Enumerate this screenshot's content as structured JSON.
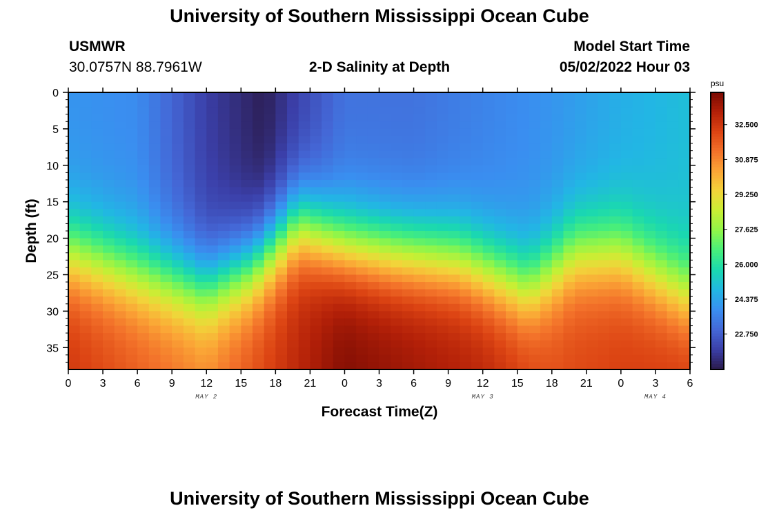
{
  "page": {
    "title": "University of Southern Mississippi Ocean Cube",
    "footer_title": "University of Southern Mississippi Ocean Cube",
    "station_name": "USMWR",
    "station_coords": "30.0757N  88.7961W",
    "plot_title": "2-D Salinity at Depth",
    "model_start_label": "Model Start Time",
    "model_start_value": "05/02/2022 Hour 03"
  },
  "chart_data": {
    "type": "heatmap",
    "title": "2-D Salinity at Depth",
    "xlabel": "Forecast Time(Z)",
    "ylabel": "Depth (ft)",
    "x_tick_labels": [
      "0",
      "3",
      "6",
      "9",
      "12",
      "15",
      "18",
      "21",
      "0",
      "3",
      "6",
      "9",
      "12",
      "15",
      "18",
      "21",
      "0",
      "3",
      "6"
    ],
    "x_range_hours": [
      0,
      54
    ],
    "y_ticks": [
      0,
      5,
      10,
      15,
      20,
      25,
      30,
      35
    ],
    "y_range": [
      0,
      38
    ],
    "y_inverted": true,
    "date_labels": [
      {
        "text": "MAY 2",
        "hour": 12
      },
      {
        "text": "MAY 3",
        "hour": 36
      },
      {
        "text": "MAY 4",
        "hour": 51
      }
    ],
    "colorbar": {
      "unit": "psu",
      "range": [
        21.1,
        34.0
      ],
      "tick_values": [
        32.5,
        30.875,
        29.25,
        27.625,
        26.0,
        24.375,
        22.75
      ],
      "tick_labels": [
        "32.500",
        "30.875",
        "29.250",
        "27.625",
        "26.000",
        "24.375",
        "22.750"
      ],
      "colors": [
        "#2a1a4a",
        "#3b3fa8",
        "#4467d6",
        "#3a8ef0",
        "#22b6e4",
        "#1ad8b0",
        "#46ee7c",
        "#8ff54a",
        "#c8ef34",
        "#f2d43a",
        "#fba636",
        "#f3722a",
        "#dc4413",
        "#b32008",
        "#7a0b03"
      ]
    },
    "surface_salinity_estimate": [
      {
        "hour": 0,
        "value": 24.0
      },
      {
        "hour": 6,
        "value": 23.8
      },
      {
        "hour": 12,
        "value": 22.0
      },
      {
        "hour": 17,
        "value": 21.2
      },
      {
        "hour": 24,
        "value": 23.2
      },
      {
        "hour": 30,
        "value": 23.2
      },
      {
        "hour": 36,
        "value": 23.6
      },
      {
        "hour": 42,
        "value": 24.0
      },
      {
        "hour": 48,
        "value": 24.6
      },
      {
        "hour": 54,
        "value": 25.0
      }
    ],
    "bottom_salinity_estimate": [
      {
        "hour": 0,
        "value": 32.5
      },
      {
        "hour": 12,
        "value": 31.0
      },
      {
        "hour": 24,
        "value": 33.9
      },
      {
        "hour": 36,
        "value": 33.0
      },
      {
        "hour": 42,
        "value": 32.0
      },
      {
        "hour": 48,
        "value": 32.3
      },
      {
        "hour": 54,
        "value": 32.5
      }
    ],
    "halocline_depth_ft_estimate": [
      {
        "hour": 0,
        "value": 22
      },
      {
        "hour": 6,
        "value": 25
      },
      {
        "hour": 12,
        "value": 27
      },
      {
        "hour": 16,
        "value": 24
      },
      {
        "hour": 20,
        "value": 18
      },
      {
        "hour": 24,
        "value": 21
      },
      {
        "hour": 28,
        "value": 22
      },
      {
        "hour": 34,
        "value": 23
      },
      {
        "hour": 40,
        "value": 27
      },
      {
        "hour": 44,
        "value": 22
      },
      {
        "hour": 48,
        "value": 22
      },
      {
        "hour": 52,
        "value": 26
      },
      {
        "hour": 54,
        "value": 28
      }
    ]
  }
}
